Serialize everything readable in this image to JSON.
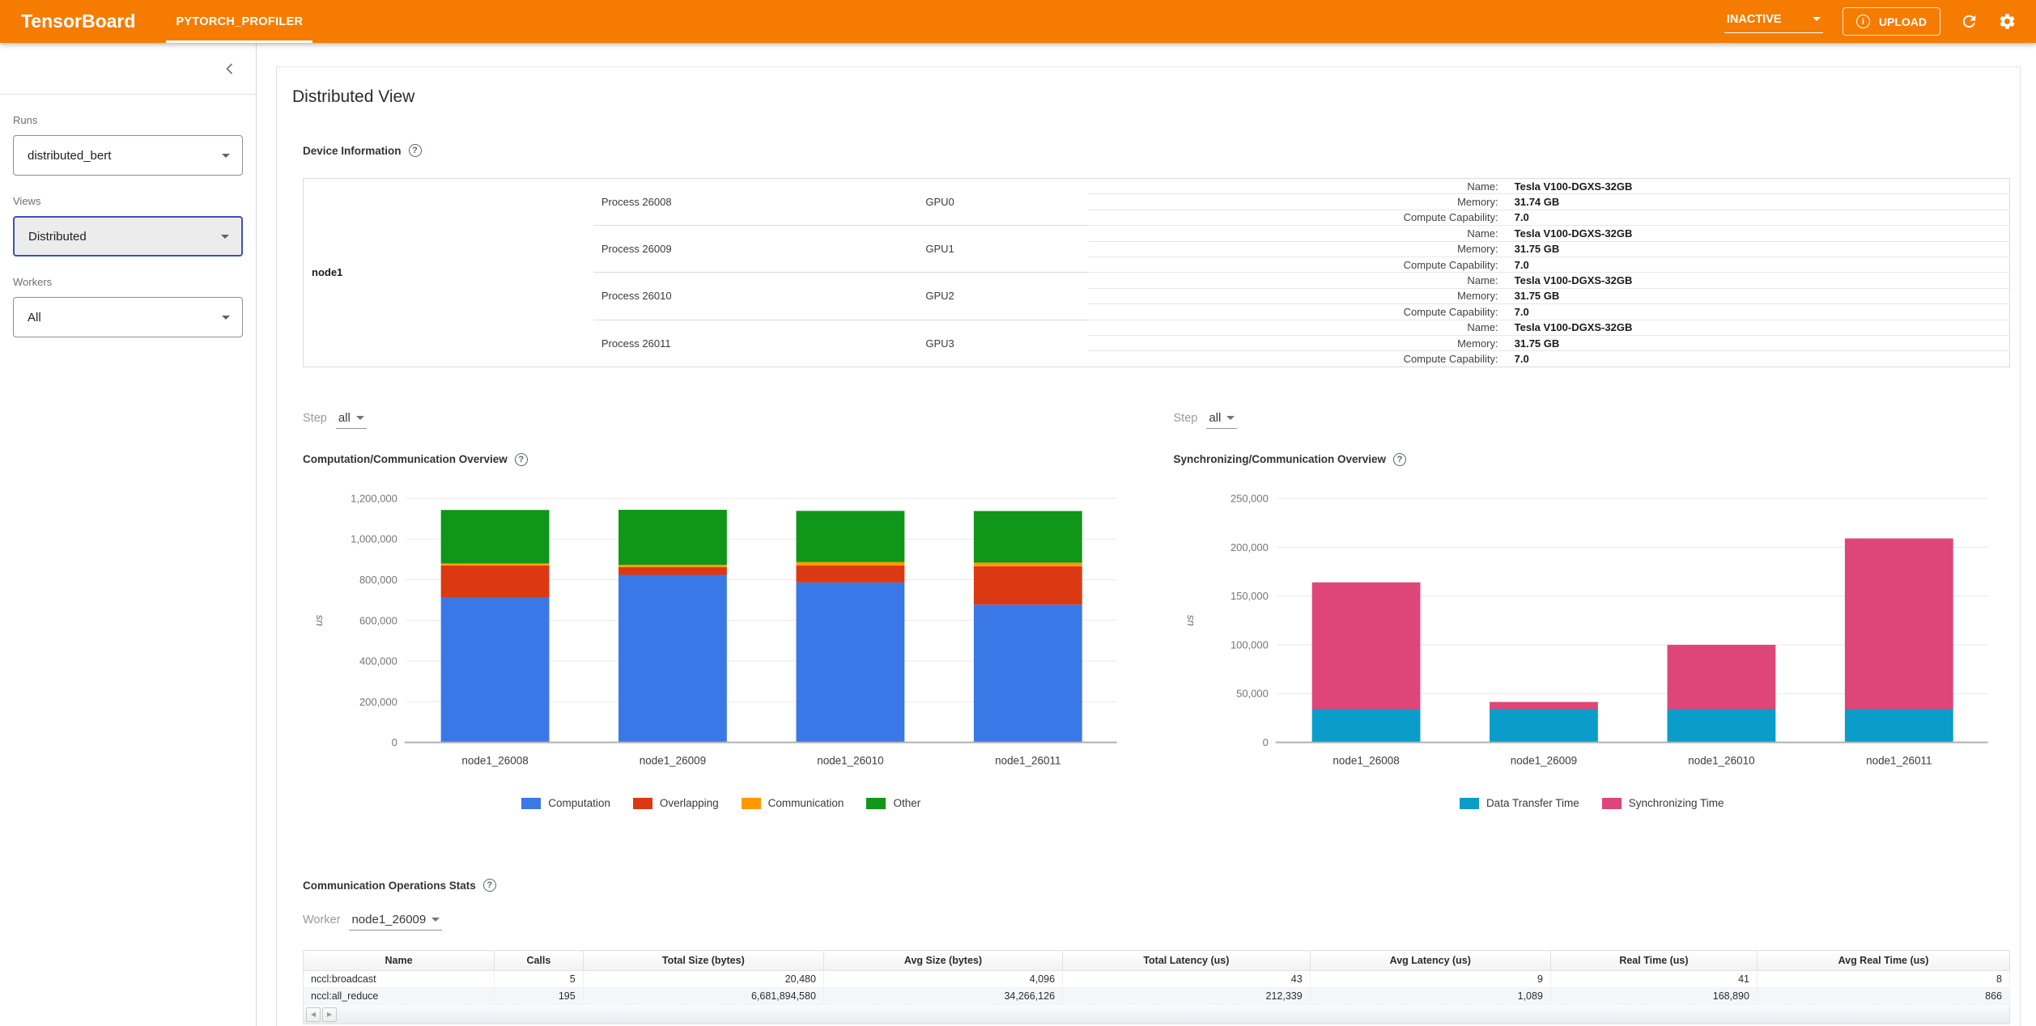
{
  "header": {
    "brand": "TensorBoard",
    "tab": "PYTORCH_PROFILER",
    "status": {
      "label": "INACTIVE"
    },
    "upload": {
      "label": "UPLOAD"
    },
    "colors": {
      "toolbar": "#f57c00"
    }
  },
  "sidebar": {
    "runs": {
      "label": "Runs",
      "value": "distributed_bert"
    },
    "views": {
      "label": "Views",
      "value": "Distributed"
    },
    "workers": {
      "label": "Workers",
      "value": "All"
    },
    "focus_color": "#3f51b5"
  },
  "main": {
    "title": "Distributed View",
    "device_info": {
      "title": "Device Information",
      "node": "node1",
      "field_labels": {
        "name": "Name:",
        "memory": "Memory:",
        "compute_capability": "Compute Capability:"
      },
      "gpus": [
        {
          "process": "Process 26008",
          "gpu": "GPU0",
          "name": "Tesla V100-DGXS-32GB",
          "memory": "31.74 GB",
          "compute_capability": "7.0"
        },
        {
          "process": "Process 26009",
          "gpu": "GPU1",
          "name": "Tesla V100-DGXS-32GB",
          "memory": "31.75 GB",
          "compute_capability": "7.0"
        },
        {
          "process": "Process 26010",
          "gpu": "GPU2",
          "name": "Tesla V100-DGXS-32GB",
          "memory": "31.75 GB",
          "compute_capability": "7.0"
        },
        {
          "process": "Process 26011",
          "gpu": "GPU3",
          "name": "Tesla V100-DGXS-32GB",
          "memory": "31.75 GB",
          "compute_capability": "7.0"
        }
      ]
    },
    "step_selector": {
      "label": "Step",
      "value": "all"
    },
    "comm_ops": {
      "title": "Communication Operations Stats",
      "worker": {
        "label": "Worker",
        "value": "node1_26009"
      },
      "columns": [
        "Name",
        "Calls",
        "Total Size (bytes)",
        "Avg Size (bytes)",
        "Total Latency (us)",
        "Avg Latency (us)",
        "Real Time (us)",
        "Avg Real Time (us)"
      ],
      "rows": [
        [
          "nccl:broadcast",
          "5",
          "20,480",
          "4,096",
          "43",
          "9",
          "41",
          "8"
        ],
        [
          "nccl:all_reduce",
          "195",
          "6,681,894,580",
          "34,266,126",
          "212,339",
          "1,089",
          "168,890",
          "866"
        ]
      ]
    }
  },
  "chart_data": [
    {
      "type": "bar",
      "stacked": true,
      "title": "Computation/Communication Overview",
      "categories": [
        "node1_26008",
        "node1_26009",
        "node1_26010",
        "node1_26011"
      ],
      "series": [
        {
          "name": "Computation",
          "color": "#3b78e7",
          "values": [
            712000,
            824000,
            787000,
            678000
          ]
        },
        {
          "name": "Overlapping",
          "color": "#dc3912",
          "values": [
            158000,
            38000,
            83000,
            188000
          ]
        },
        {
          "name": "Communication",
          "color": "#ff9900",
          "values": [
            10000,
            12000,
            17000,
            18000
          ]
        },
        {
          "name": "Other",
          "color": "#109618",
          "values": [
            263000,
            270000,
            252000,
            254000
          ]
        }
      ],
      "xlabel": "",
      "ylabel": "us",
      "ylim": [
        0,
        1200000
      ],
      "ytick_step": 200000,
      "grid": true,
      "legend_position": "bottom"
    },
    {
      "type": "bar",
      "stacked": true,
      "title": "Synchronizing/Communication Overview",
      "categories": [
        "node1_26008",
        "node1_26009",
        "node1_26010",
        "node1_26011"
      ],
      "series": [
        {
          "name": "Data Transfer Time",
          "color": "#0a9dc9",
          "values": [
            34000,
            34000,
            34000,
            34000
          ]
        },
        {
          "name": "Synchronizing Time",
          "color": "#de4679",
          "values": [
            130000,
            7500,
            66000,
            175000
          ]
        }
      ],
      "xlabel": "",
      "ylabel": "us",
      "ylim": [
        0,
        250000
      ],
      "ytick_step": 50000,
      "grid": true,
      "legend_position": "bottom"
    }
  ]
}
